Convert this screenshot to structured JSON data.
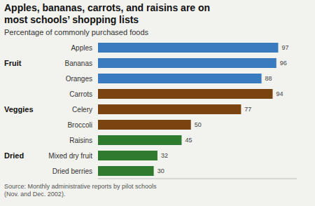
{
  "chart_data": {
    "type": "bar",
    "orientation": "horizontal",
    "title": "Apples, bananas, carrots, and raisins are on\nmost schools’ shopping lists",
    "subtitle": "Percentage of commonly purchased foods",
    "source": "Source: Monthly administrative reports by pilot schools\n(Nov. and Dec. 2002).",
    "categories": [
      "Apples",
      "Bananas",
      "Oranges",
      "Carrots",
      "Celery",
      "Broccoli",
      "Raisins",
      "Mixed dry fruit",
      "Dried berries"
    ],
    "values": [
      97,
      96,
      88,
      94,
      77,
      50,
      45,
      32,
      30
    ],
    "colors": [
      "#3a7abf",
      "#3a7abf",
      "#3a7abf",
      "#7a4410",
      "#7a4410",
      "#7a4410",
      "#2e7a2e",
      "#2e7a2e",
      "#2e7a2e"
    ],
    "annotations": [
      {
        "text": "Fruit",
        "category": "Bananas"
      },
      {
        "text": "Veggies",
        "category": "Celery"
      },
      {
        "text": "Dried",
        "category": "Mixed dry fruit"
      }
    ],
    "xlim": [
      0,
      107
    ],
    "tick_labels": "y",
    "data_labels": true,
    "grid": false
  }
}
